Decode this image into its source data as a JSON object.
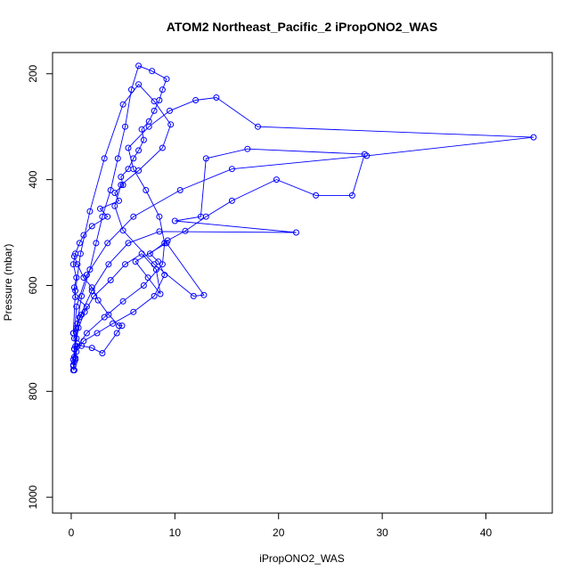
{
  "chart_data": {
    "type": "scatter",
    "title": "ATOM2 Northeast_Pacific_2 iPropONO2_WAS",
    "xlabel": "iPropONO2_WAS",
    "ylabel": "Pressure (mbar)",
    "xlim": [
      -1.8,
      46.4
    ],
    "ylim": [
      1030,
      160
    ],
    "y_reversed": true,
    "x_ticks": [
      0,
      10,
      20,
      30,
      40
    ],
    "y_ticks": [
      200,
      400,
      600,
      800,
      1000
    ],
    "grid": false,
    "legend": "none",
    "color": "#0000ff",
    "series": [
      {
        "x": [
          0.3,
          0.2,
          0.4,
          0.3,
          0.5,
          0.2,
          0.6,
          1.0,
          1.5,
          0.4,
          0.3,
          0.5,
          0.2,
          0.4,
          0.8,
          1.2,
          2.0,
          3.5,
          2.8,
          4.6,
          4.2,
          5.0,
          4.8,
          5.5,
          6.0,
          6.5,
          7.0,
          6.8,
          7.5,
          8.0,
          8.5,
          8.8,
          9.2,
          7.8,
          6.5,
          5.8,
          5.2,
          4.5,
          3.8,
          3.0,
          2.4,
          1.8,
          1.0,
          0.5,
          0.3,
          0.2
        ],
        "y": [
          760,
          752,
          737,
          720,
          700,
          690,
          672,
          655,
          640,
          622,
          604,
          585,
          560,
          540,
          520,
          505,
          488,
          470,
          455,
          440,
          425,
          410,
          395,
          380,
          360,
          345,
          325,
          305,
          290,
          270,
          250,
          230,
          210,
          195,
          185,
          230,
          300,
          360,
          420,
          470,
          520,
          570,
          620,
          680,
          720,
          750
        ]
      },
      {
        "x": [
          0.2,
          0.4,
          0.6,
          1.5,
          3.2,
          5.0,
          7.0,
          8.8,
          9.0,
          8.5,
          7.2,
          6.0,
          5.5,
          7.5,
          9.5,
          12.0,
          14.0,
          18.0,
          44.6,
          28.5,
          15.5,
          10.5,
          6.0,
          3.5,
          1.5,
          0.5,
          0.3
        ],
        "y": [
          760,
          740,
          715,
          690,
          660,
          630,
          600,
          560,
          520,
          470,
          420,
          380,
          340,
          300,
          270,
          250,
          245,
          300,
          320,
          355,
          380,
          420,
          470,
          520,
          580,
          640,
          700
        ]
      },
      {
        "x": [
          0.3,
          0.5,
          1.2,
          2.5,
          4.0,
          6.0,
          8.0,
          9.0,
          8.4,
          7.6,
          9.3,
          11.0,
          13.0,
          15.5,
          19.8,
          23.6,
          27.1,
          28.3,
          17.0,
          13.0,
          12.5,
          10.0,
          21.7,
          8.5,
          5.5,
          3.6,
          2.0,
          0.8,
          0.3
        ],
        "y": [
          745,
          725,
          705,
          690,
          672,
          650,
          620,
          580,
          555,
          540,
          515,
          497,
          470,
          440,
          400,
          430,
          430,
          352,
          342,
          360,
          470,
          478,
          500,
          498,
          520,
          560,
          610,
          660,
          720
        ]
      },
      {
        "x": [
          0.2,
          0.4,
          0.7,
          1.3,
          2.2,
          3.8,
          5.2,
          6.8,
          8.2,
          8.6,
          7.4,
          6.2,
          9.2,
          12.8,
          11.8,
          8.0,
          5.0,
          4.2,
          4.8,
          6.5,
          8.8,
          9.6,
          8.0,
          6.5,
          5.0,
          3.2,
          1.8,
          0.9,
          0.4,
          0.2
        ],
        "y": [
          740,
          715,
          680,
          650,
          620,
          590,
          560,
          540,
          570,
          616,
          585,
          555,
          520,
          618,
          620,
          560,
          496,
          450,
          410,
          383,
          340,
          296,
          252,
          220,
          258,
          360,
          460,
          540,
          610,
          690
        ]
      },
      {
        "x": [
          0.3,
          0.6,
          1.0,
          2.0,
          3.0,
          4.4,
          4.9,
          4.6,
          3.6,
          2.6,
          2.0,
          1.2,
          0.6,
          0.3
        ],
        "y": [
          735,
          710,
          714,
          718,
          728,
          690,
          676,
          676,
          655,
          628,
          604,
          585,
          560,
          545
        ]
      }
    ]
  }
}
